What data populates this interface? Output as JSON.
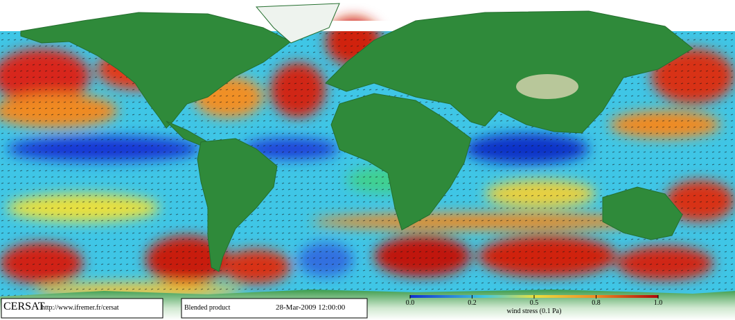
{
  "footer": {
    "brand": "CERSAT",
    "url": "http://www.ifremer.fr/cersat",
    "product": "Blended product",
    "timestamp": "28-Mar-2009 12:00:00"
  },
  "colorbar": {
    "label": "wind stress (0.1 Pa)",
    "ticks": [
      {
        "value": 0,
        "label": "0.0"
      },
      0.2,
      0.5,
      0.8,
      {
        "value": 1,
        "label": "1.0"
      }
    ]
  }
}
